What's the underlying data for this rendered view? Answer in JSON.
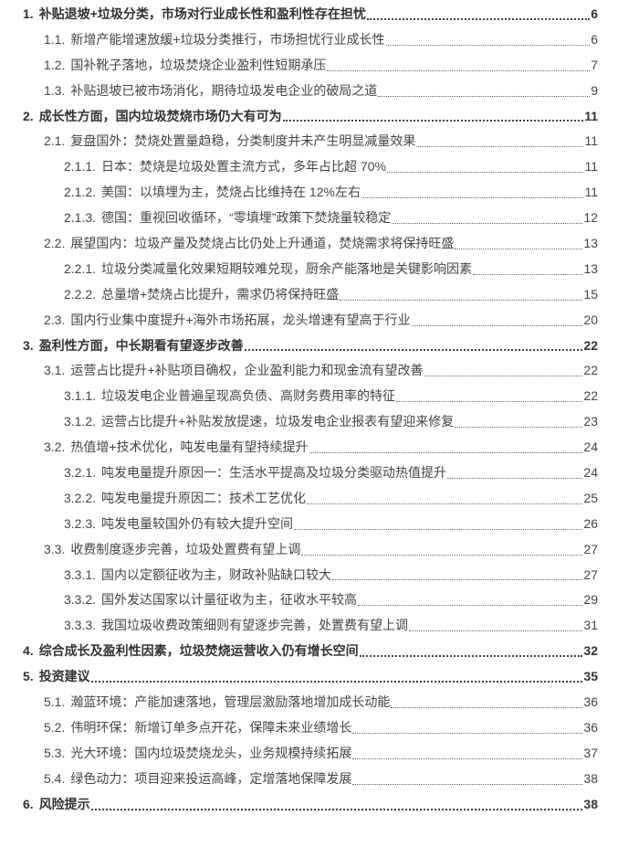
{
  "toc": [
    {
      "level": 1,
      "num": "1.",
      "title": "补贴退坡+垃圾分类，市场对行业成长性和盈利性存在担忧",
      "page": "6"
    },
    {
      "level": 2,
      "num": "1.1.",
      "title": "新增产能增速放缓+垃圾分类推行，市场担忧行业成长性",
      "page": "6"
    },
    {
      "level": 2,
      "num": "1.2.",
      "title": "国补靴子落地，垃圾焚烧企业盈利性短期承压",
      "page": "7"
    },
    {
      "level": 2,
      "num": "1.3.",
      "title": "补贴退坡已被市场消化，期待垃圾发电企业的破局之道",
      "page": "9"
    },
    {
      "level": 1,
      "num": "2.",
      "title": "成长性方面，国内垃圾焚烧市场仍大有可为",
      "page": "11"
    },
    {
      "level": 2,
      "num": "2.1.",
      "title": "复盘国外：焚烧处置量趋稳，分类制度并未产生明显减量效果",
      "page": "11"
    },
    {
      "level": 3,
      "num": "2.1.1.",
      "title": "日本：焚烧是垃圾处置主流方式，多年占比超 70%",
      "page": "11"
    },
    {
      "level": 3,
      "num": "2.1.2.",
      "title": "美国：以填埋为主，焚烧占比维持在 12%左右",
      "page": "11"
    },
    {
      "level": 3,
      "num": "2.1.3.",
      "title": "德国：重视回收循环，“零填埋”政策下焚烧量较稳定",
      "page": "12"
    },
    {
      "level": 2,
      "num": "2.2.",
      "title": "展望国内：垃圾产量及焚烧占比仍处上升通道，焚烧需求将保持旺盛",
      "page": "13"
    },
    {
      "level": 3,
      "num": "2.2.1.",
      "title": "垃圾分类减量化效果短期较难兑现，厨余产能落地是关键影响因素",
      "page": "13"
    },
    {
      "level": 3,
      "num": "2.2.2.",
      "title": "总量增+焚烧占比提升，需求仍将保持旺盛",
      "page": "15"
    },
    {
      "level": 2,
      "num": "2.3.",
      "title": "国内行业集中度提升+海外市场拓展，龙头增速有望高于行业",
      "page": "20"
    },
    {
      "level": 1,
      "num": "3.",
      "title": "盈利性方面，中长期看有望逐步改善",
      "page": "22"
    },
    {
      "level": 2,
      "num": "3.1.",
      "title": "运营占比提升+补贴项目确权，企业盈利能力和现金流有望改善",
      "page": "22"
    },
    {
      "level": 3,
      "num": "3.1.1.",
      "title": "垃圾发电企业普遍呈现高负债、高财务费用率的特征",
      "page": "22"
    },
    {
      "level": 3,
      "num": "3.1.2.",
      "title": "运营占比提升+补贴发放提速，垃圾发电企业报表有望迎来修复",
      "page": "23"
    },
    {
      "level": 2,
      "num": "3.2.",
      "title": "热值增+技术优化，吨发电量有望持续提升",
      "page": "24"
    },
    {
      "level": 3,
      "num": "3.2.1.",
      "title": "吨发电量提升原因一：生活水平提高及垃圾分类驱动热值提升",
      "page": "24"
    },
    {
      "level": 3,
      "num": "3.2.2.",
      "title": "吨发电量提升原因二：技术工艺优化",
      "page": "25"
    },
    {
      "level": 3,
      "num": "3.2.3.",
      "title": "吨发电量较国外仍有较大提升空间",
      "page": "26"
    },
    {
      "level": 2,
      "num": "3.3.",
      "title": "收费制度逐步完善，垃圾处置费有望上调",
      "page": "27"
    },
    {
      "level": 3,
      "num": "3.3.1.",
      "title": "国内以定额征收为主，财政补贴缺口较大",
      "page": "27"
    },
    {
      "level": 3,
      "num": "3.3.2.",
      "title": "国外发达国家以计量征收为主，征收水平较高",
      "page": "29"
    },
    {
      "level": 3,
      "num": "3.3.3.",
      "title": "我国垃圾收费政策细则有望逐步完善，处置费有望上调",
      "page": "31"
    },
    {
      "level": 1,
      "num": "4.",
      "title": "综合成长及盈利性因素，垃圾焚烧运营收入仍有增长空间",
      "page": "32"
    },
    {
      "level": 1,
      "num": "5.",
      "title": "投资建议",
      "page": "35"
    },
    {
      "level": 2,
      "num": "5.1.",
      "title": "瀚蓝环境：产能加速落地，管理层激励落地增加成长动能",
      "page": "36"
    },
    {
      "level": 2,
      "num": "5.2.",
      "title": "伟明环保：新增订单多点开花，保障未来业绩增长",
      "page": "36"
    },
    {
      "level": 2,
      "num": "5.3.",
      "title": "光大环境：国内垃圾焚烧龙头，业务规模持续拓展",
      "page": "37"
    },
    {
      "level": 2,
      "num": "5.4.",
      "title": "绿色动力：项目迎来投运高峰，定增落地保障发展",
      "page": "38"
    },
    {
      "level": 1,
      "num": "6.",
      "title": "风险提示",
      "page": "38"
    }
  ]
}
